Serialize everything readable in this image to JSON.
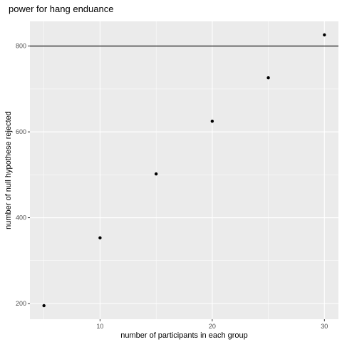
{
  "chart_data": {
    "type": "scatter",
    "title": "power for hang enduance",
    "xlabel": "number of participants in each group",
    "ylabel": "number of null hypothese rejected",
    "x": [
      5,
      10,
      15,
      20,
      25,
      30
    ],
    "y": [
      195,
      353,
      502,
      625,
      726,
      826
    ],
    "xlim": [
      3.75,
      31.25
    ],
    "ylim": [
      163.45,
      857.55
    ],
    "xticks": [
      10,
      20,
      30
    ],
    "xtick_labels": [
      "10",
      "20",
      "30"
    ],
    "yticks": [
      200,
      400,
      600,
      800
    ],
    "ytick_labels": [
      "200",
      "400",
      "600",
      "800"
    ],
    "hline": 800,
    "grid": true,
    "panel_color": "#ebebeb",
    "grid_color": "#ffffff",
    "point_color": "#000000",
    "line_color": "#000000"
  }
}
